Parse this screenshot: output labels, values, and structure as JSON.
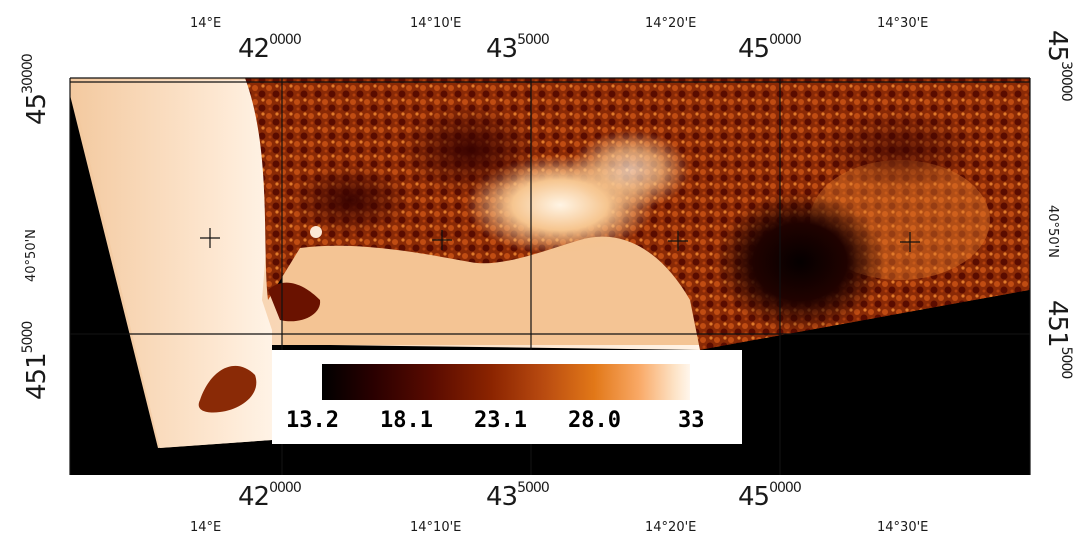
{
  "map": {
    "top_lon_labels": [
      "14°E",
      "14°10'E",
      "14°20'E",
      "14°30'E"
    ],
    "bottom_lon_labels": [
      "14°E",
      "14°10'E",
      "14°20'E",
      "14°30'E"
    ],
    "left_lat_labels": [
      "40°50'N"
    ],
    "right_lat_labels": [
      "40°50'N"
    ],
    "easting_labels": [
      {
        "main": "42",
        "exp": "0000"
      },
      {
        "main": "43",
        "exp": "5000"
      },
      {
        "main": "45",
        "exp": "0000"
      }
    ],
    "northing_labels": [
      {
        "main": "45",
        "exp": "30000"
      },
      {
        "main": "451",
        "exp": "5000"
      }
    ],
    "colors": {
      "water": "#f6c9a0",
      "land_dark": "#6a1200",
      "land_mid": "#a5380a",
      "land_bright": "#e88a3a",
      "nodata": "#000000"
    }
  },
  "legend": {
    "ticks": [
      "13.2",
      "18.1",
      "23.1",
      "28.0",
      "33"
    ]
  }
}
